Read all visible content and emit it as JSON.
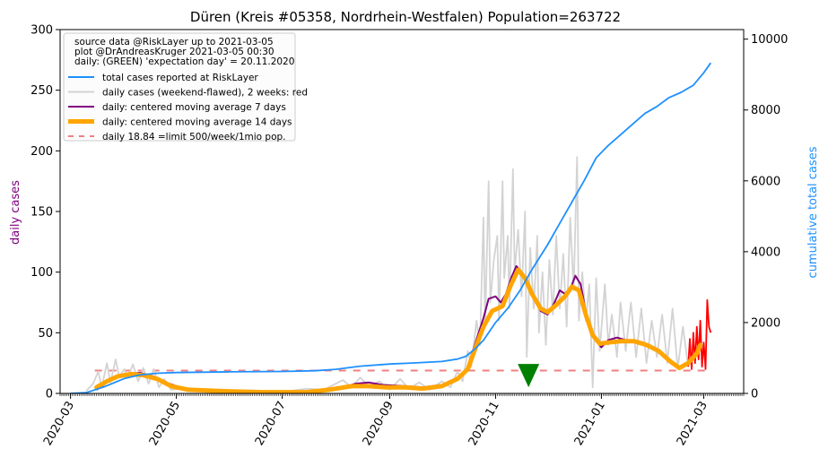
{
  "chart_data": {
    "type": "line",
    "title": "Düren (Kreis #05358, Nordrhein-Westfalen) Population=263722",
    "ylabel_left": "daily cases",
    "ylabel_right": "cumulative total cases",
    "ylim_left": [
      0,
      300
    ],
    "ylim_right": [
      0,
      10270
    ],
    "xlim": [
      "2020-02-24",
      "2021-03-24"
    ],
    "y_ticks_left": [
      0,
      50,
      100,
      150,
      200,
      250,
      300
    ],
    "y_ticks_right": [
      0,
      2000,
      4000,
      6000,
      8000,
      10000
    ],
    "x_ticks": [
      {
        "date": "2020-03-01",
        "label": "2020-03"
      },
      {
        "date": "2020-05-01",
        "label": "2020-05"
      },
      {
        "date": "2020-07-01",
        "label": "2020-07"
      },
      {
        "date": "2020-09-01",
        "label": "2020-09"
      },
      {
        "date": "2020-11-01",
        "label": "2020-11"
      },
      {
        "date": "2021-01-01",
        "label": "2021-01"
      },
      {
        "date": "2021-03-01",
        "label": "2021-03"
      }
    ],
    "legend": {
      "placement": "top-left",
      "header": [
        "source data @RiskLayer up to 2021-03-05",
        "plot @DrAndreasKruger 2021-03-05 00:30",
        "daily: (GREEN) 'expectation day' = 20.11.2020"
      ],
      "entries": [
        {
          "label": "total cases reported at RiskLayer",
          "color": "#1e90ff",
          "style": "line"
        },
        {
          "label": "daily cases (weekend-flawed), 2 weeks: red",
          "color": "#d3d3d3",
          "style": "line"
        },
        {
          "label": "daily: centered moving average 7 days",
          "color": "#800080",
          "style": "line"
        },
        {
          "label": "daily: centered moving average 14 days",
          "color": "#ffa500",
          "style": "thick"
        },
        {
          "label": "daily 18.84 =limit 500/week/1mio pop.",
          "color": "#f08080",
          "style": "dashed"
        }
      ]
    },
    "limit_line": {
      "value": 18.84,
      "from": "2020-03-15",
      "to": "2021-03-05"
    },
    "expectation_day": {
      "date": "2020-11-20",
      "value": 8
    },
    "series": [
      {
        "name": "total cases reported at RiskLayer",
        "axis": "right",
        "color": "#1e90ff",
        "points": [
          [
            "2020-03-01",
            0
          ],
          [
            "2020-03-10",
            20
          ],
          [
            "2020-03-20",
            180
          ],
          [
            "2020-04-01",
            420
          ],
          [
            "2020-04-10",
            520
          ],
          [
            "2020-04-20",
            570
          ],
          [
            "2020-05-01",
            590
          ],
          [
            "2020-06-01",
            610
          ],
          [
            "2020-07-01",
            620
          ],
          [
            "2020-07-20",
            640
          ],
          [
            "2020-08-01",
            680
          ],
          [
            "2020-08-15",
            770
          ],
          [
            "2020-09-01",
            830
          ],
          [
            "2020-09-15",
            860
          ],
          [
            "2020-10-01",
            900
          ],
          [
            "2020-10-10",
            970
          ],
          [
            "2020-10-15",
            1050
          ],
          [
            "2020-10-20",
            1250
          ],
          [
            "2020-10-25",
            1500
          ],
          [
            "2020-11-01",
            2000
          ],
          [
            "2020-11-08",
            2400
          ],
          [
            "2020-11-15",
            2900
          ],
          [
            "2020-11-22",
            3500
          ],
          [
            "2020-12-01",
            4200
          ],
          [
            "2020-12-08",
            4800
          ],
          [
            "2020-12-15",
            5400
          ],
          [
            "2020-12-22",
            6000
          ],
          [
            "2020-12-29",
            6650
          ],
          [
            "2021-01-05",
            7000
          ],
          [
            "2021-01-12",
            7300
          ],
          [
            "2021-01-19",
            7600
          ],
          [
            "2021-01-26",
            7900
          ],
          [
            "2021-02-02",
            8100
          ],
          [
            "2021-02-09",
            8350
          ],
          [
            "2021-02-16",
            8500
          ],
          [
            "2021-02-23",
            8700
          ],
          [
            "2021-03-01",
            9050
          ],
          [
            "2021-03-05",
            9330
          ]
        ]
      },
      {
        "name": "daily cases (weekend-flawed), 2 weeks: red",
        "axis": "left",
        "color": "#d3d3d3",
        "red_from": "2021-02-20",
        "red_color": "#ff0000",
        "points": [
          [
            "2020-03-10",
            2
          ],
          [
            "2020-03-14",
            8
          ],
          [
            "2020-03-17",
            18
          ],
          [
            "2020-03-19",
            5
          ],
          [
            "2020-03-22",
            25
          ],
          [
            "2020-03-24",
            9
          ],
          [
            "2020-03-27",
            28
          ],
          [
            "2020-03-29",
            14
          ],
          [
            "2020-04-01",
            20
          ],
          [
            "2020-04-03",
            13
          ],
          [
            "2020-04-06",
            24
          ],
          [
            "2020-04-09",
            10
          ],
          [
            "2020-04-12",
            21
          ],
          [
            "2020-04-15",
            8
          ],
          [
            "2020-04-18",
            20
          ],
          [
            "2020-04-21",
            5
          ],
          [
            "2020-04-24",
            12
          ],
          [
            "2020-04-28",
            3
          ],
          [
            "2020-05-05",
            4
          ],
          [
            "2020-05-15",
            2
          ],
          [
            "2020-06-01",
            1
          ],
          [
            "2020-06-15",
            2
          ],
          [
            "2020-07-01",
            1
          ],
          [
            "2020-07-15",
            4
          ],
          [
            "2020-07-25",
            3
          ],
          [
            "2020-08-05",
            11
          ],
          [
            "2020-08-10",
            5
          ],
          [
            "2020-08-15",
            13
          ],
          [
            "2020-08-20",
            6
          ],
          [
            "2020-08-26",
            10
          ],
          [
            "2020-09-01",
            3
          ],
          [
            "2020-09-07",
            12
          ],
          [
            "2020-09-12",
            4
          ],
          [
            "2020-09-18",
            9
          ],
          [
            "2020-09-24",
            3
          ],
          [
            "2020-10-01",
            10
          ],
          [
            "2020-10-06",
            5
          ],
          [
            "2020-10-10",
            18
          ],
          [
            "2020-10-13",
            10
          ],
          [
            "2020-10-16",
            35
          ],
          [
            "2020-10-18",
            22
          ],
          [
            "2020-10-21",
            60
          ],
          [
            "2020-10-23",
            40
          ],
          [
            "2020-10-25",
            145
          ],
          [
            "2020-10-26",
            55
          ],
          [
            "2020-10-28",
            175
          ],
          [
            "2020-10-29",
            75
          ],
          [
            "2020-10-31",
            110
          ],
          [
            "2020-11-02",
            130
          ],
          [
            "2020-11-03",
            60
          ],
          [
            "2020-11-05",
            175
          ],
          [
            "2020-11-06",
            95
          ],
          [
            "2020-11-08",
            130
          ],
          [
            "2020-11-09",
            70
          ],
          [
            "2020-11-11",
            185
          ],
          [
            "2020-11-12",
            100
          ],
          [
            "2020-11-14",
            135
          ],
          [
            "2020-11-16",
            80
          ],
          [
            "2020-11-18",
            150
          ],
          [
            "2020-11-19",
            30
          ],
          [
            "2020-11-21",
            120
          ],
          [
            "2020-11-23",
            70
          ],
          [
            "2020-11-25",
            130
          ],
          [
            "2020-11-26",
            50
          ],
          [
            "2020-11-28",
            100
          ],
          [
            "2020-11-30",
            40
          ],
          [
            "2020-12-02",
            110
          ],
          [
            "2020-12-04",
            65
          ],
          [
            "2020-12-06",
            130
          ],
          [
            "2020-12-08",
            70
          ],
          [
            "2020-12-10",
            115
          ],
          [
            "2020-12-12",
            55
          ],
          [
            "2020-12-14",
            145
          ],
          [
            "2020-12-16",
            85
          ],
          [
            "2020-12-18",
            195
          ],
          [
            "2020-12-19",
            60
          ],
          [
            "2020-12-21",
            100
          ],
          [
            "2020-12-23",
            60
          ],
          [
            "2020-12-25",
            90
          ],
          [
            "2020-12-27",
            5
          ],
          [
            "2020-12-29",
            95
          ],
          [
            "2020-12-31",
            35
          ],
          [
            "2021-01-03",
            90
          ],
          [
            "2021-01-05",
            40
          ],
          [
            "2021-01-07",
            65
          ],
          [
            "2021-01-10",
            30
          ],
          [
            "2021-01-12",
            75
          ],
          [
            "2021-01-15",
            35
          ],
          [
            "2021-01-18",
            75
          ],
          [
            "2021-01-21",
            30
          ],
          [
            "2021-01-24",
            70
          ],
          [
            "2021-01-27",
            25
          ],
          [
            "2021-01-30",
            60
          ],
          [
            "2021-02-02",
            30
          ],
          [
            "2021-02-05",
            65
          ],
          [
            "2021-02-08",
            25
          ],
          [
            "2021-02-11",
            70
          ],
          [
            "2021-02-14",
            20
          ],
          [
            "2021-02-17",
            55
          ],
          [
            "2021-02-20",
            22
          ],
          [
            "2021-02-21",
            45
          ],
          [
            "2021-02-22",
            20
          ],
          [
            "2021-02-23",
            50
          ],
          [
            "2021-02-24",
            25
          ],
          [
            "2021-02-25",
            55
          ],
          [
            "2021-02-26",
            28
          ],
          [
            "2021-02-27",
            60
          ],
          [
            "2021-02-28",
            22
          ],
          [
            "2021-03-01",
            42
          ],
          [
            "2021-03-02",
            20
          ],
          [
            "2021-03-03",
            77
          ],
          [
            "2021-03-04",
            55
          ],
          [
            "2021-03-05",
            50
          ]
        ]
      },
      {
        "name": "daily: centered moving average 7 days",
        "axis": "left",
        "color": "#800080",
        "points": [
          [
            "2020-03-16",
            3
          ],
          [
            "2020-03-25",
            12
          ],
          [
            "2020-04-01",
            16
          ],
          [
            "2020-04-10",
            17
          ],
          [
            "2020-04-18",
            14
          ],
          [
            "2020-04-25",
            9
          ],
          [
            "2020-05-05",
            4
          ],
          [
            "2020-05-20",
            2
          ],
          [
            "2020-06-15",
            1
          ],
          [
            "2020-07-15",
            1
          ],
          [
            "2020-08-01",
            3
          ],
          [
            "2020-08-12",
            8
          ],
          [
            "2020-08-20",
            9
          ],
          [
            "2020-08-28",
            7
          ],
          [
            "2020-09-10",
            6
          ],
          [
            "2020-09-20",
            5
          ],
          [
            "2020-10-01",
            7
          ],
          [
            "2020-10-10",
            12
          ],
          [
            "2020-10-15",
            18
          ],
          [
            "2020-10-20",
            40
          ],
          [
            "2020-10-25",
            62
          ],
          [
            "2020-10-28",
            78
          ],
          [
            "2020-11-01",
            80
          ],
          [
            "2020-11-04",
            75
          ],
          [
            "2020-11-07",
            82
          ],
          [
            "2020-11-10",
            95
          ],
          [
            "2020-11-13",
            105
          ],
          [
            "2020-11-16",
            100
          ],
          [
            "2020-11-19",
            90
          ],
          [
            "2020-11-23",
            78
          ],
          [
            "2020-11-27",
            68
          ],
          [
            "2020-12-01",
            65
          ],
          [
            "2020-12-05",
            75
          ],
          [
            "2020-12-08",
            85
          ],
          [
            "2020-12-11",
            82
          ],
          [
            "2020-12-14",
            86
          ],
          [
            "2020-12-17",
            97
          ],
          [
            "2020-12-20",
            90
          ],
          [
            "2020-12-24",
            60
          ],
          [
            "2020-12-28",
            45
          ],
          [
            "2021-01-01",
            38
          ],
          [
            "2021-01-05",
            44
          ],
          [
            "2021-01-10",
            46
          ],
          [
            "2021-01-15",
            44
          ],
          [
            "2021-01-20",
            44
          ],
          [
            "2021-01-25",
            42
          ],
          [
            "2021-01-30",
            38
          ],
          [
            "2021-02-04",
            34
          ],
          [
            "2021-02-09",
            28
          ],
          [
            "2021-02-14",
            22
          ],
          [
            "2021-02-19",
            24
          ],
          [
            "2021-02-23",
            30
          ],
          [
            "2021-02-28",
            40
          ]
        ]
      },
      {
        "name": "daily: centered moving average 14 days",
        "axis": "left",
        "color": "#ffa500",
        "points": [
          [
            "2020-03-16",
            5
          ],
          [
            "2020-03-22",
            10
          ],
          [
            "2020-03-28",
            14
          ],
          [
            "2020-04-05",
            16
          ],
          [
            "2020-04-12",
            15
          ],
          [
            "2020-04-20",
            12
          ],
          [
            "2020-04-28",
            6
          ],
          [
            "2020-05-08",
            3
          ],
          [
            "2020-05-25",
            2
          ],
          [
            "2020-06-20",
            1
          ],
          [
            "2020-07-15",
            1
          ],
          [
            "2020-07-28",
            3
          ],
          [
            "2020-08-10",
            6
          ],
          [
            "2020-08-20",
            6
          ],
          [
            "2020-08-30",
            5
          ],
          [
            "2020-09-10",
            5
          ],
          [
            "2020-09-20",
            4
          ],
          [
            "2020-10-01",
            6
          ],
          [
            "2020-10-10",
            12
          ],
          [
            "2020-10-16",
            20
          ],
          [
            "2020-10-21",
            40
          ],
          [
            "2020-10-25",
            55
          ],
          [
            "2020-10-30",
            68
          ],
          [
            "2020-11-05",
            72
          ],
          [
            "2020-11-10",
            90
          ],
          [
            "2020-11-14",
            102
          ],
          [
            "2020-11-18",
            95
          ],
          [
            "2020-11-22",
            82
          ],
          [
            "2020-11-27",
            70
          ],
          [
            "2020-12-01",
            67
          ],
          [
            "2020-12-06",
            73
          ],
          [
            "2020-12-11",
            80
          ],
          [
            "2020-12-15",
            88
          ],
          [
            "2020-12-19",
            85
          ],
          [
            "2020-12-23",
            65
          ],
          [
            "2020-12-27",
            48
          ],
          [
            "2020-12-31",
            41
          ],
          [
            "2021-01-05",
            42
          ],
          [
            "2021-01-12",
            43
          ],
          [
            "2021-01-20",
            43
          ],
          [
            "2021-01-27",
            40
          ],
          [
            "2021-02-03",
            35
          ],
          [
            "2021-02-10",
            26
          ],
          [
            "2021-02-15",
            21
          ],
          [
            "2021-02-20",
            25
          ],
          [
            "2021-02-25",
            33
          ],
          [
            "2021-02-27",
            40
          ]
        ]
      }
    ]
  }
}
